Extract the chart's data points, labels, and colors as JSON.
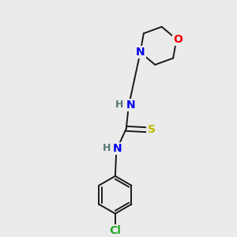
{
  "background_color": "#ebebeb",
  "bond_color": "#1a1a1a",
  "atom_colors": {
    "N": "#0000ee",
    "O": "#ee0000",
    "S": "#bbbb00",
    "Cl": "#22aa22",
    "C": "#1a1a1a",
    "H": "#557777"
  },
  "figsize": [
    3.0,
    3.0
  ],
  "dpi": 100,
  "bond_lw": 1.4,
  "font_size": 9.5
}
